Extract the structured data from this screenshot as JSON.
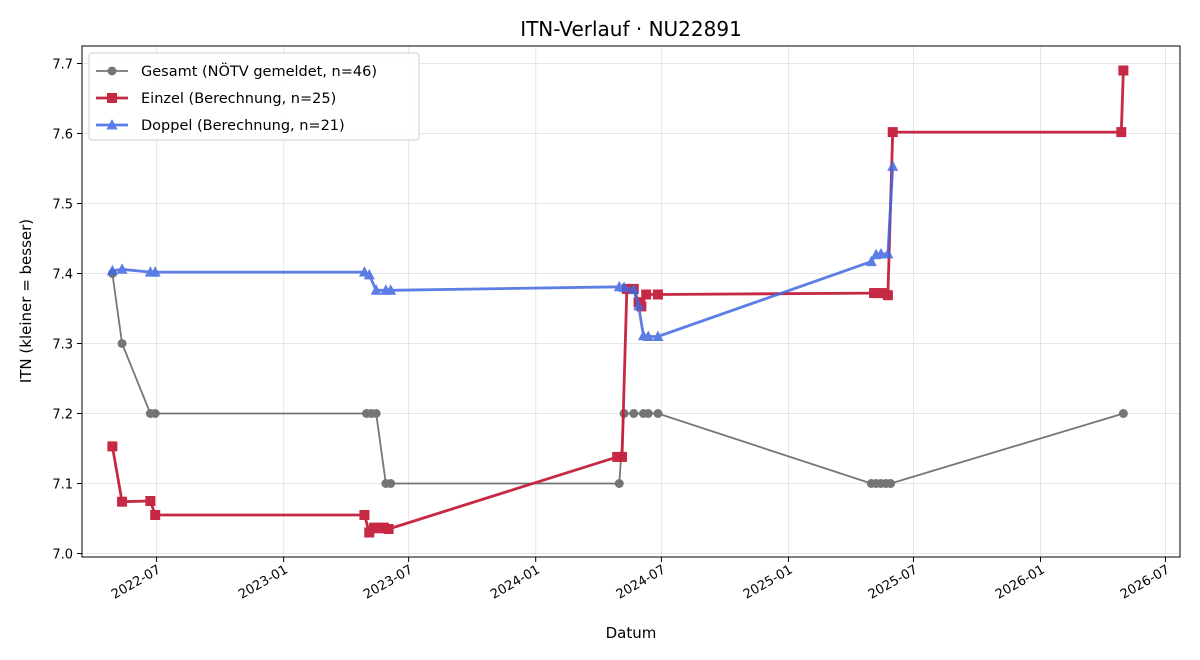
{
  "chart_data": {
    "type": "line",
    "title": "ITN-Verlauf · NU22891",
    "xlabel": "Datum",
    "ylabel": "ITN  (kleiner = besser)",
    "x_type": "date",
    "xlim": [
      "2022-03-15",
      "2026-07-22"
    ],
    "ylim": [
      6.995,
      7.725
    ],
    "x_ticks": [
      "2022-07-01",
      "2023-01-01",
      "2023-07-01",
      "2024-01-01",
      "2024-07-01",
      "2025-01-01",
      "2025-07-01",
      "2026-01-01",
      "2026-07-01"
    ],
    "x_tick_labels": [
      "2022-07",
      "2023-01",
      "2023-07",
      "2024-01",
      "2024-07",
      "2025-01",
      "2025-07",
      "2026-01",
      "2026-07"
    ],
    "y_ticks": [
      7.0,
      7.1,
      7.2,
      7.3,
      7.4,
      7.5,
      7.6,
      7.7
    ],
    "y_tick_labels": [
      "7.0",
      "7.1",
      "7.2",
      "7.3",
      "7.4",
      "7.5",
      "7.6",
      "7.7"
    ],
    "grid": true,
    "legend_position": "top-left",
    "series": [
      {
        "name": "Gesamt (NÖTV gemeldet, n=46)",
        "color": "#555555",
        "marker": "circle",
        "line_width": 1.8,
        "opacity": 0.8,
        "points": [
          [
            "2022-04-28",
            7.4
          ],
          [
            "2022-05-12",
            7.3
          ],
          [
            "2022-06-22",
            7.2
          ],
          [
            "2022-06-29",
            7.2
          ],
          [
            "2023-05-01",
            7.2
          ],
          [
            "2023-05-08",
            7.2
          ],
          [
            "2023-05-15",
            7.2
          ],
          [
            "2023-05-29",
            7.1
          ],
          [
            "2023-06-05",
            7.1
          ],
          [
            "2024-05-01",
            7.1
          ],
          [
            "2024-05-08",
            7.2
          ],
          [
            "2024-05-22",
            7.2
          ],
          [
            "2024-06-05",
            7.2
          ],
          [
            "2024-06-12",
            7.2
          ],
          [
            "2024-06-26",
            7.2
          ],
          [
            "2025-05-01",
            7.1
          ],
          [
            "2025-05-08",
            7.1
          ],
          [
            "2025-05-15",
            7.1
          ],
          [
            "2025-05-22",
            7.1
          ],
          [
            "2025-05-29",
            7.1
          ],
          [
            "2026-05-01",
            7.2
          ]
        ]
      },
      {
        "name": "Einzel (Berechnung, n=25)",
        "color": "#c41e3a",
        "marker": "square",
        "line_width": 2.8,
        "opacity": 0.95,
        "points": [
          [
            "2022-04-28",
            7.153
          ],
          [
            "2022-05-12",
            7.074
          ],
          [
            "2022-06-22",
            7.075
          ],
          [
            "2022-06-29",
            7.055
          ],
          [
            "2023-04-28",
            7.055
          ],
          [
            "2023-05-05",
            7.03
          ],
          [
            "2023-05-12",
            7.037
          ],
          [
            "2023-05-19",
            7.036
          ],
          [
            "2023-05-26",
            7.037
          ],
          [
            "2023-06-02",
            7.035
          ],
          [
            "2024-04-28",
            7.138
          ],
          [
            "2024-05-05",
            7.138
          ],
          [
            "2024-05-12",
            7.378
          ],
          [
            "2024-05-22",
            7.378
          ],
          [
            "2024-05-29",
            7.359
          ],
          [
            "2024-06-02",
            7.353
          ],
          [
            "2024-06-09",
            7.37
          ],
          [
            "2024-06-26",
            7.37
          ],
          [
            "2025-05-05",
            7.372
          ],
          [
            "2025-05-12",
            7.372
          ],
          [
            "2025-05-18",
            7.372
          ],
          [
            "2025-05-25",
            7.369
          ],
          [
            "2025-06-01",
            7.602
          ],
          [
            "2026-04-28",
            7.602
          ],
          [
            "2026-05-01",
            7.69
          ]
        ]
      },
      {
        "name": "Doppel (Berechnung, n=21)",
        "color": "#4169e1",
        "marker": "triangle",
        "line_width": 2.8,
        "opacity": 0.85,
        "points": [
          [
            "2022-04-28",
            7.404
          ],
          [
            "2022-05-12",
            7.406
          ],
          [
            "2022-06-22",
            7.402
          ],
          [
            "2022-06-29",
            7.402
          ],
          [
            "2023-04-28",
            7.402
          ],
          [
            "2023-05-05",
            7.398
          ],
          [
            "2023-05-15",
            7.376
          ],
          [
            "2023-05-29",
            7.376
          ],
          [
            "2023-06-05",
            7.376
          ],
          [
            "2024-05-01",
            7.381
          ],
          [
            "2024-05-08",
            7.38
          ],
          [
            "2024-05-22",
            7.377
          ],
          [
            "2024-05-29",
            7.354
          ],
          [
            "2024-06-05",
            7.311
          ],
          [
            "2024-06-12",
            7.31
          ],
          [
            "2024-06-26",
            7.31
          ],
          [
            "2025-05-01",
            7.417
          ],
          [
            "2025-05-08",
            7.427
          ],
          [
            "2025-05-15",
            7.428
          ],
          [
            "2025-05-25",
            7.428
          ],
          [
            "2025-06-01",
            7.553
          ]
        ]
      }
    ]
  }
}
